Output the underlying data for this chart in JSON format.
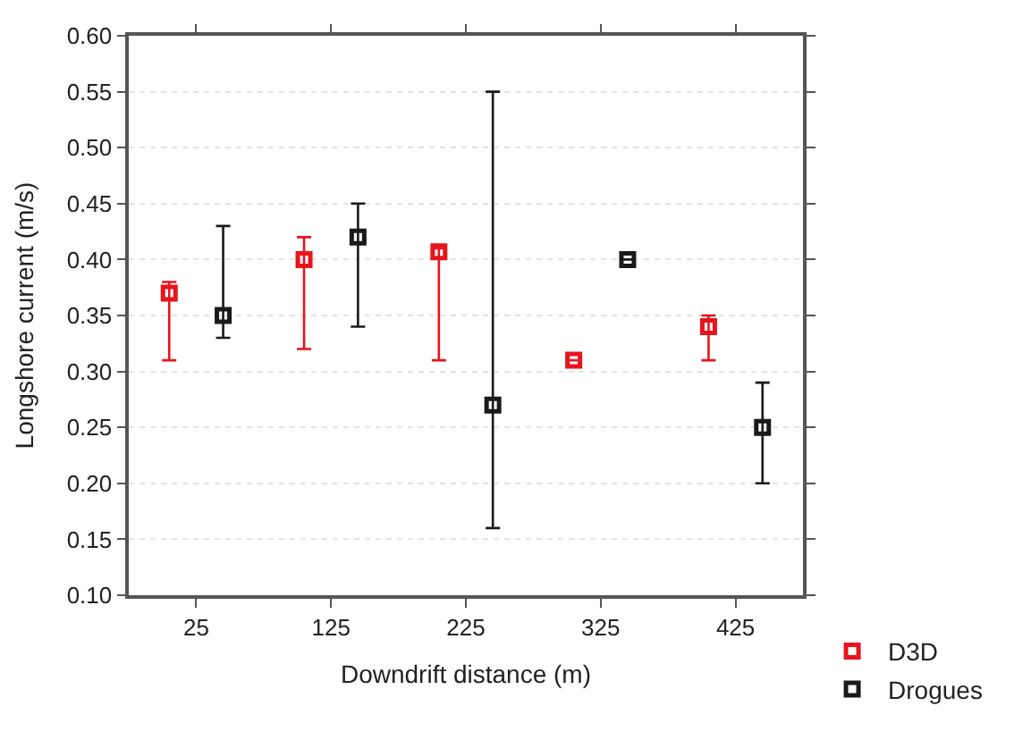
{
  "chart_data": {
    "type": "scatter",
    "xlabel": "Downdrift distance (m)",
    "ylabel": "Longshore current (m/s)",
    "xlim": [
      -25,
      475
    ],
    "xticks": [
      25,
      125,
      225,
      325,
      425
    ],
    "ylim": [
      0.1,
      0.6
    ],
    "yticks": [
      {
        "value": 0.1,
        "label": "0.10"
      },
      {
        "value": 0.15,
        "label": "0.15"
      },
      {
        "value": 0.2,
        "label": "0.20"
      },
      {
        "value": 0.25,
        "label": "0.25"
      },
      {
        "value": 0.3,
        "label": "0.30"
      },
      {
        "value": 0.35,
        "label": "0.35"
      },
      {
        "value": 0.4,
        "label": "0.40"
      },
      {
        "value": 0.45,
        "label": "0.45"
      },
      {
        "value": 0.5,
        "label": "0.50"
      },
      {
        "value": 0.55,
        "label": "0.55"
      },
      {
        "value": 0.6,
        "label": "0.60"
      }
    ],
    "grid": "y",
    "legend": "bottom right",
    "marker": "square",
    "series": [
      {
        "name": "D3D",
        "color": "#e8141c",
        "x": [
          5,
          105,
          205,
          305,
          405
        ],
        "values": [
          0.37,
          0.4,
          0.407,
          0.31,
          0.34
        ],
        "errors": [
          [
            0.31,
            0.38
          ],
          [
            0.32,
            0.42
          ],
          [
            0.31,
            0.41
          ],
          null,
          [
            0.31,
            0.35
          ]
        ]
      },
      {
        "name": "Drogues",
        "color": "#1a1a1a",
        "x": [
          45,
          145,
          245,
          345,
          445
        ],
        "values": [
          0.35,
          0.42,
          0.27,
          0.4,
          0.25
        ],
        "errors": [
          [
            0.33,
            0.43
          ],
          [
            0.34,
            0.45
          ],
          [
            0.16,
            0.55
          ],
          null,
          [
            0.2,
            0.29
          ]
        ]
      }
    ]
  }
}
